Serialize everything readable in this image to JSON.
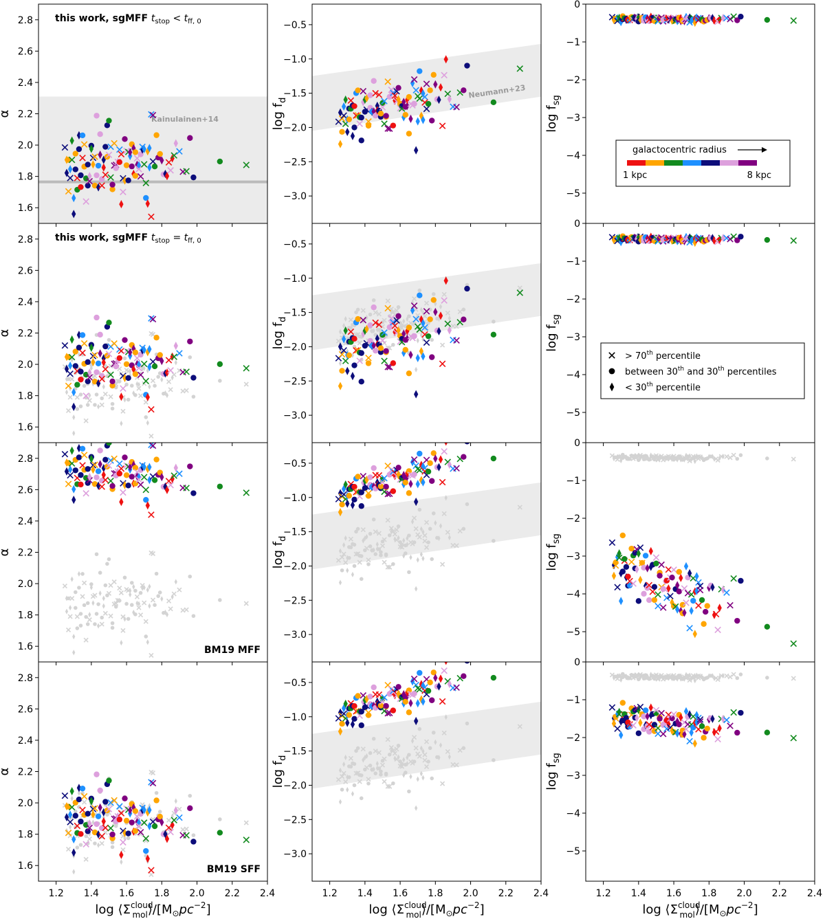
{
  "chart_data": {
    "type": "scatter",
    "layout": "4 rows x 3 columns of scatter panels with shared x axis",
    "x_axis": {
      "label_prefix": "log ⟨Σ",
      "label_sub": "mol",
      "label_sup": "cloud",
      "label_suffix": "⟩/[M",
      "label_sun": "⊙",
      "label_unit": "pc",
      "label_exp": "−2",
      "label_close": "]",
      "xlim": [
        1.1,
        2.4
      ],
      "ticks": [
        1.2,
        1.4,
        1.6,
        1.8,
        2.0,
        2.2,
        2.4
      ],
      "tick_labels": [
        "1.2",
        "1.4",
        "1.6",
        "1.8",
        "2.0",
        "2.2",
        "2.4"
      ]
    },
    "columns": [
      {
        "key": "alpha",
        "ylabel": "α",
        "ylim": [
          1.5,
          2.9
        ],
        "ticks": [
          1.6,
          1.8,
          2.0,
          2.2,
          2.4,
          2.6,
          2.8
        ],
        "tick_labels": [
          "1.6",
          "1.8",
          "2.0",
          "2.2",
          "2.4",
          "2.6",
          "2.8"
        ]
      },
      {
        "key": "fd",
        "ylabel_main": "log f",
        "ylabel_sub": "d",
        "ylim": [
          -3.4,
          -0.2
        ],
        "ticks": [
          -3.0,
          -2.5,
          -2.0,
          -1.5,
          -1.0,
          -0.5
        ],
        "tick_labels": [
          "−3.0",
          "−2.5",
          "−2.0",
          "−1.5",
          "−1.0",
          "−0.5"
        ]
      },
      {
        "key": "fsg",
        "ylabel_main": "log f",
        "ylabel_sub": "sg",
        "ylim": [
          -5.8,
          0.0
        ],
        "ticks": [
          -5,
          -4,
          -3,
          -2,
          -1,
          0
        ],
        "tick_labels": [
          "−5",
          "−4",
          "−3",
          "−2",
          "−1",
          "0"
        ]
      }
    ],
    "rows": [
      {
        "label_bold": "this work, sgMFF ",
        "label_math": "t",
        "label_sub1": "stop",
        "label_rel": " < ",
        "label_math2": "t",
        "label_sub2": "ff, 0",
        "label_pos": "top-left",
        "alpha": {
          "mean": 1.9,
          "slope": 0.1,
          "spread": 0.12,
          "low_start": 1.67,
          "low_end": 1.95
        },
        "fd": {
          "mean": -1.7,
          "slope": 0.45,
          "spread": 0.2
        },
        "fsg": {
          "mean": -0.4,
          "slope": 0.0,
          "spread": 0.04
        },
        "grey_alpha": false,
        "grey_fd": false,
        "grey_fsg": false
      },
      {
        "label_bold": "this work, sgMFF ",
        "label_math": "t",
        "label_sub1": "stop",
        "label_rel": " = ",
        "label_math2": "t",
        "label_sub2": "ff, 0",
        "label_pos": "top-left",
        "alpha": {
          "mean": 2.03,
          "slope": 0.05,
          "spread": 0.11,
          "low_start": 1.85,
          "low_end": 2.0
        },
        "fd": {
          "mean": -1.9,
          "slope": 0.55,
          "spread": 0.25
        },
        "fsg": {
          "mean": -0.42,
          "slope": 0.0,
          "spread": 0.04
        },
        "grey_alpha": true,
        "grey_fd": true,
        "grey_fsg": false
      },
      {
        "label_bold": "BM19 MFF",
        "label_pos": "bottom-right",
        "alpha": {
          "mean": 2.72,
          "slope": -0.1,
          "spread": 0.08,
          "low_start": 2.55,
          "low_end": 2.65
        },
        "fd": {
          "mean": -0.75,
          "slope": 0.75,
          "spread": 0.12
        },
        "fsg": {
          "mean": -3.75,
          "slope": -1.6,
          "spread": 0.45
        },
        "grey_alpha": true,
        "grey_fd": true,
        "grey_fsg": true
      },
      {
        "label_bold": "BM19 SFF",
        "label_pos": "bottom-right",
        "alpha": {
          "mean": 1.92,
          "slope": -0.1,
          "spread": 0.1,
          "low_start": 1.7,
          "low_end": 1.85
        },
        "fd": {
          "mean": -0.75,
          "slope": 0.75,
          "spread": 0.12
        },
        "fsg": {
          "mean": -1.6,
          "slope": -0.3,
          "spread": 0.22
        },
        "grey_alpha": true,
        "grey_fd": true,
        "grey_fsg": true
      }
    ],
    "reference_bands": {
      "alpha": {
        "label": "Kainulainen+14",
        "ymin": 1.5,
        "ymax": 2.31,
        "line": 1.765
      },
      "fd": {
        "label": "Neumann+23",
        "x0": 1.1,
        "lo0": -2.05,
        "hi0": -1.25,
        "x1": 2.4,
        "lo1": -1.55,
        "hi1": -0.78
      }
    },
    "radius_legend": {
      "title": "galactocentric radius",
      "min_label": "1 kpc",
      "max_label": "8 kpc",
      "colors": [
        "#ee1111",
        "#ffa500",
        "#128a1e",
        "#1e90ff",
        "#0d0d7a",
        "#dda0dd",
        "#800080"
      ]
    },
    "marker_legend": {
      "entries": [
        {
          "marker": "x",
          "pre": "> 70",
          "sup": "th",
          "post": " percentile"
        },
        {
          "marker": "circle",
          "pre": "between 30",
          "sup": "th",
          "mid": " and 30",
          "sup2": "th",
          "post": " percentiles"
        },
        {
          "marker": "diamond",
          "pre": "< 30",
          "sup": "th",
          "post": " percentile"
        }
      ]
    },
    "colors": {
      "grey_points": "#d3d3d3",
      "band": "#ebebeb",
      "band_line": "#bbbbbb"
    },
    "x_values_note_free": [
      1.25,
      1.26,
      1.26,
      1.27,
      1.27,
      1.28,
      1.28,
      1.29,
      1.29,
      1.3,
      1.3,
      1.31,
      1.31,
      1.32,
      1.32,
      1.33,
      1.33,
      1.34,
      1.34,
      1.35,
      1.35,
      1.36,
      1.36,
      1.37,
      1.37,
      1.38,
      1.38,
      1.39,
      1.39,
      1.4,
      1.4,
      1.41,
      1.41,
      1.42,
      1.42,
      1.43,
      1.43,
      1.44,
      1.44,
      1.45,
      1.45,
      1.46,
      1.46,
      1.47,
      1.47,
      1.48,
      1.48,
      1.49,
      1.49,
      1.5,
      1.5,
      1.51,
      1.51,
      1.52,
      1.52,
      1.53,
      1.53,
      1.54,
      1.54,
      1.55,
      1.55,
      1.56,
      1.56,
      1.57,
      1.57,
      1.58,
      1.58,
      1.59,
      1.59,
      1.6,
      1.6,
      1.61,
      1.61,
      1.62,
      1.62,
      1.63,
      1.63,
      1.64,
      1.64,
      1.65,
      1.65,
      1.66,
      1.66,
      1.67,
      1.67,
      1.68,
      1.68,
      1.69,
      1.69,
      1.7,
      1.7,
      1.71,
      1.71,
      1.72,
      1.72,
      1.73,
      1.73,
      1.74,
      1.74,
      1.75,
      1.75,
      1.76,
      1.77,
      1.78,
      1.79,
      1.8,
      1.81,
      1.82,
      1.83,
      1.84,
      1.85,
      1.86,
      1.87,
      1.88,
      1.9,
      1.92,
      1.94,
      1.96,
      1.98,
      2.13,
      2.28
    ]
  }
}
